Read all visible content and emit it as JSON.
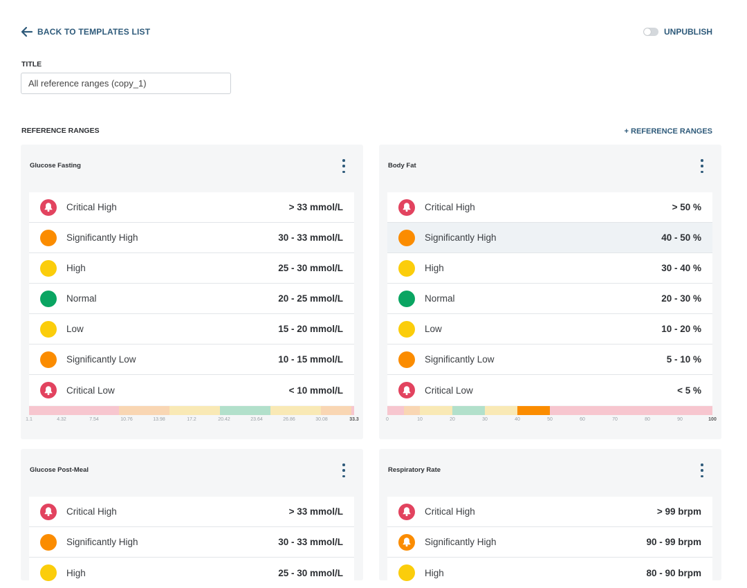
{
  "nav": {
    "back_label": "BACK TO TEMPLATES LIST",
    "unpublish_label": "UNPUBLISH"
  },
  "form": {
    "title_label": "TITLE",
    "title_value": "All reference ranges (copy_1)"
  },
  "section": {
    "label": "REFERENCE RANGES",
    "add_label": "+ REFERENCE RANGES"
  },
  "colors": {
    "critical": "#e2435f",
    "significant": "#fb8c00",
    "high_low": "#fbcd0b",
    "normal": "#0aa562",
    "bar_critical": "#f7c6cf",
    "bar_significant": "#f9d6b3",
    "bar_high_low": "#f9e9b5",
    "bar_normal": "#b2e0cb",
    "bar_active": "#fb8c00",
    "accent": "#2e5a7a"
  },
  "cards": [
    {
      "title": "Glucose Fasting",
      "rows": [
        {
          "label": "Critical High",
          "value": "> 33 mmol/L",
          "icon": "bell-icon",
          "level": "critical"
        },
        {
          "label": "Significantly High",
          "value": "30 - 33 mmol/L",
          "icon": "dot",
          "level": "significant"
        },
        {
          "label": "High",
          "value": "25 - 30 mmol/L",
          "icon": "dot",
          "level": "high_low"
        },
        {
          "label": "Normal",
          "value": "20 - 25 mmol/L",
          "icon": "dot",
          "level": "normal"
        },
        {
          "label": "Low",
          "value": "15 - 20 mmol/L",
          "icon": "dot",
          "level": "high_low"
        },
        {
          "label": "Significantly Low",
          "value": "10 - 15 mmol/L",
          "icon": "dot",
          "level": "significant"
        },
        {
          "label": "Critical Low",
          "value": "< 10 mmol/L",
          "icon": "bell-icon",
          "level": "critical"
        }
      ],
      "scale": {
        "min": 1.1,
        "max": 33.3,
        "segments": [
          {
            "to": 10,
            "level": "bar_critical"
          },
          {
            "to": 15,
            "level": "bar_significant"
          },
          {
            "to": 20,
            "level": "bar_high_low"
          },
          {
            "to": 25,
            "level": "bar_normal"
          },
          {
            "to": 30,
            "level": "bar_high_low"
          },
          {
            "to": 33,
            "level": "bar_significant"
          },
          {
            "to": 33.3,
            "level": "bar_critical"
          }
        ],
        "ticks": [
          "1.1",
          "4.32",
          "7.54",
          "10.76",
          "13.98",
          "17.2",
          "20.42",
          "23.64",
          "26.86",
          "30.08",
          "33.3"
        ]
      }
    },
    {
      "title": "Body Fat",
      "highlight_row": 1,
      "rows": [
        {
          "label": "Critical High",
          "value": "> 50 %",
          "icon": "bell-icon",
          "level": "critical"
        },
        {
          "label": "Significantly High",
          "value": "40 - 50 %",
          "icon": "dot",
          "level": "significant"
        },
        {
          "label": "High",
          "value": "30 - 40 %",
          "icon": "dot",
          "level": "high_low"
        },
        {
          "label": "Normal",
          "value": "20 - 30 %",
          "icon": "dot",
          "level": "normal"
        },
        {
          "label": "Low",
          "value": "10 - 20 %",
          "icon": "dot",
          "level": "high_low"
        },
        {
          "label": "Significantly Low",
          "value": "5 - 10 %",
          "icon": "dot",
          "level": "significant"
        },
        {
          "label": "Critical Low",
          "value": "< 5 %",
          "icon": "bell-icon",
          "level": "critical"
        }
      ],
      "scale": {
        "min": 0,
        "max": 100,
        "segments": [
          {
            "to": 5,
            "level": "bar_critical"
          },
          {
            "to": 10,
            "level": "bar_significant"
          },
          {
            "to": 20,
            "level": "bar_high_low"
          },
          {
            "to": 30,
            "level": "bar_normal"
          },
          {
            "to": 40,
            "level": "bar_high_low"
          },
          {
            "to": 50,
            "level": "bar_active"
          },
          {
            "to": 100,
            "level": "bar_critical"
          }
        ],
        "ticks": [
          "0",
          "10",
          "20",
          "30",
          "40",
          "50",
          "60",
          "70",
          "80",
          "90",
          "100"
        ]
      }
    },
    {
      "title": "Glucose Post-Meal",
      "rows": [
        {
          "label": "Critical High",
          "value": "> 33 mmol/L",
          "icon": "bell-icon",
          "level": "critical"
        },
        {
          "label": "Significantly High",
          "value": "30 - 33 mmol/L",
          "icon": "dot",
          "level": "significant"
        },
        {
          "label": "High",
          "value": "25 - 30 mmol/L",
          "icon": "dot",
          "level": "high_low"
        }
      ]
    },
    {
      "title": "Respiratory Rate",
      "rows": [
        {
          "label": "Critical High",
          "value": "> 99 brpm",
          "icon": "bell-icon",
          "level": "critical"
        },
        {
          "label": "Significantly High",
          "value": "90 - 99 brpm",
          "icon": "bell-icon",
          "level": "significant"
        },
        {
          "label": "High",
          "value": "80 - 90 brpm",
          "icon": "dot",
          "level": "high_low"
        }
      ]
    }
  ]
}
